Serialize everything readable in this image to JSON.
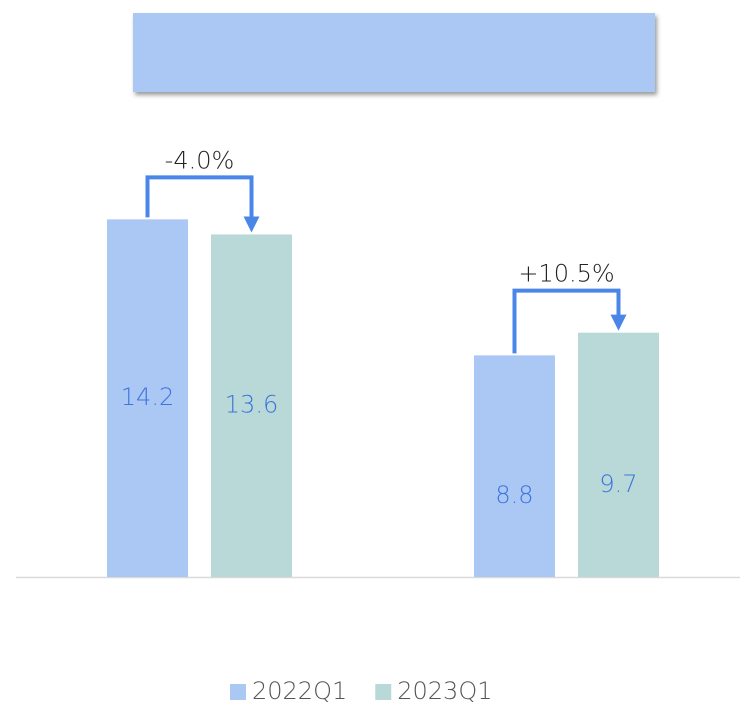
{
  "chart_data": {
    "type": "bar",
    "categories": [
      null,
      null
    ],
    "series": [
      {
        "name": "2022Q1",
        "color": "#abc8f5",
        "values": [
          14.2,
          8.8
        ]
      },
      {
        "name": "2023Q1",
        "color": "#b9d9d9",
        "values": [
          13.6,
          9.7
        ]
      }
    ],
    "annotations": [
      "-4.0%",
      "+10.5%"
    ],
    "ylim": [
      0,
      16
    ],
    "legend": "bottom"
  }
}
